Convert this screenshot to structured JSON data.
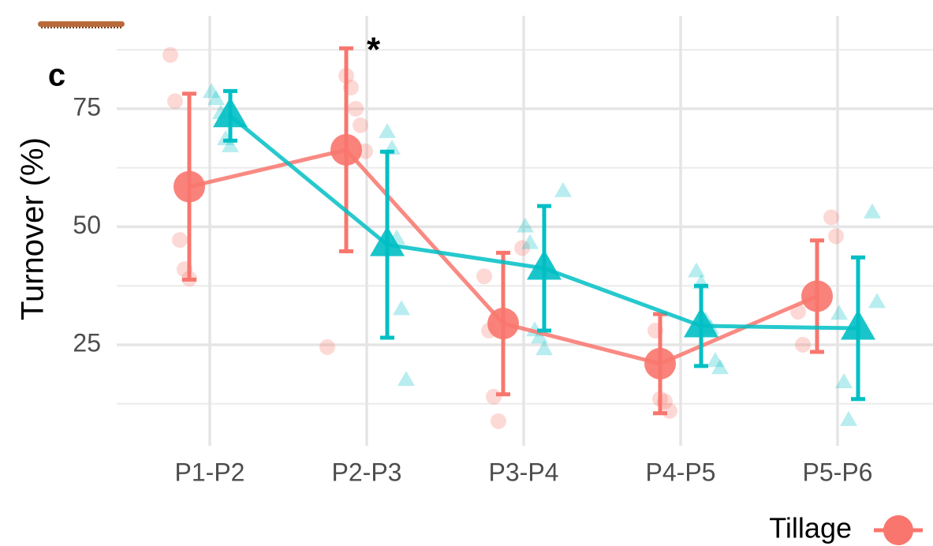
{
  "chart_data": {
    "type": "line",
    "panel_label": "c",
    "annotations": [
      "*"
    ],
    "y_label": "Turnover (%)",
    "categories": [
      "P1-P2",
      "P2-P3",
      "P3-P4",
      "P4-P5",
      "P5-P6"
    ],
    "series": [
      {
        "name": "Tillage",
        "color": "#f8766d",
        "marker": "circle",
        "values": [
          58.5,
          66.3,
          29.5,
          21,
          35.3
        ],
        "errors": [
          19.7,
          21.5,
          15,
          10.5,
          11.8
        ],
        "points": [
          [
            86.4,
            76.6,
            47.2,
            41,
            39
          ],
          [
            82,
            79.5,
            75,
            71.5,
            66,
            24.5
          ],
          [
            45.5,
            39.5,
            28,
            14,
            8.8
          ],
          [
            28,
            13.5,
            13,
            11
          ],
          [
            52,
            48,
            32,
            25
          ]
        ]
      },
      {
        "color": "#00bfc4",
        "marker": "triangle",
        "values": [
          73.5,
          46.2,
          41.2,
          29,
          28.5
        ],
        "errors": [
          5.25,
          19.7,
          13.2,
          8.5,
          15
        ],
        "points": [
          [
            78.5,
            77,
            74,
            68.5,
            67
          ],
          [
            70,
            66.5,
            47.5,
            32.5,
            17.5
          ],
          [
            57.5,
            50,
            46.5,
            28,
            26.5,
            24
          ],
          [
            40.5,
            38,
            30,
            28.5,
            21.5,
            20
          ],
          [
            53,
            34,
            31.5,
            17,
            9
          ]
        ]
      }
    ],
    "ylim": [
      3.6,
      94.7
    ],
    "yticks": [
      25,
      50,
      75
    ],
    "minor_yticks": [
      12.5,
      37.5,
      62.5,
      87.5
    ],
    "grid": true
  }
}
